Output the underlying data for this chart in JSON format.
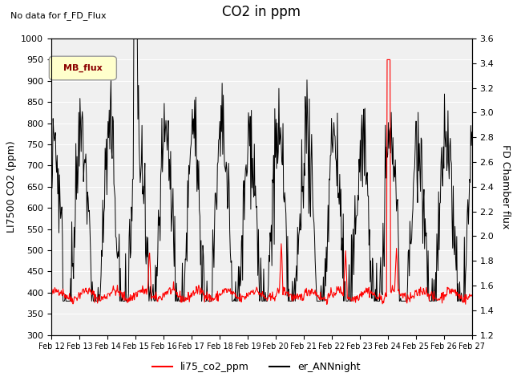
{
  "title": "CO2 in ppm",
  "subtitle": "No data for f_FD_Flux",
  "ylabel_left": "LI7500 CO2 (ppm)",
  "ylabel_right": "FD Chamber flux",
  "ylim_left": [
    300,
    1000
  ],
  "ylim_right": [
    1.2,
    3.6
  ],
  "x_tick_labels": [
    "Feb 12",
    "Feb 13",
    "Feb 14",
    "Feb 15",
    "Feb 16",
    "Feb 17",
    "Feb 18",
    "Feb 19",
    "Feb 20",
    "Feb 21",
    "Feb 22",
    "Feb 23",
    "Feb 24",
    "Feb 25",
    "Feb 26",
    "Feb 27"
  ],
  "legend_label_red": "li75_co2_ppm",
  "legend_label_black": "er_ANNnight",
  "mb_flux_label": "MB_flux",
  "plot_bg_color": "#f0f0f0"
}
